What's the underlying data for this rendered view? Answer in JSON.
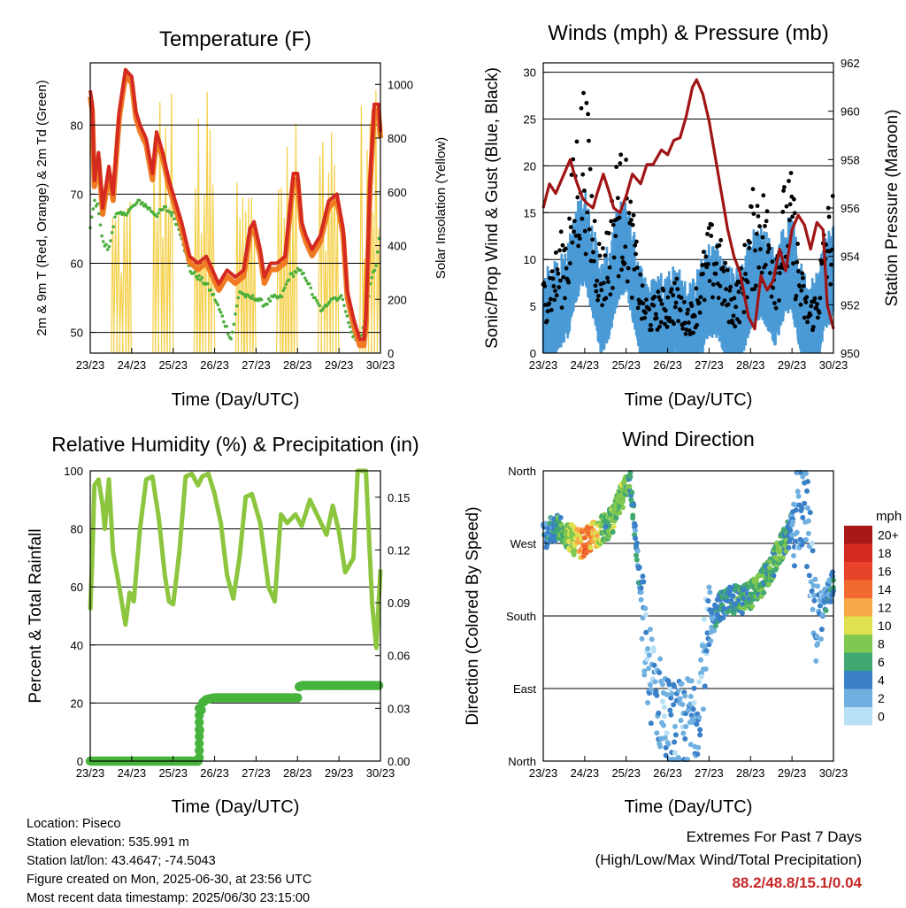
{
  "chart_data": [
    {
      "type": "line",
      "title": "Temperature (F)",
      "xlabel": "Time (Day/UTC)",
      "ylabel": "2m & 9m T (Red, Orange) & 2m Td (Green)",
      "y2label": "Solar Insolation (Yellow)",
      "x_ticks": [
        "23/23",
        "24/23",
        "25/23",
        "26/23",
        "27/23",
        "28/23",
        "29/23",
        "30/23"
      ],
      "ylim": [
        47,
        89
      ],
      "y_ticks": [
        50,
        60,
        70,
        80
      ],
      "y2lim": [
        0,
        1080
      ],
      "y2_ticks": [
        0,
        200,
        400,
        600,
        800,
        1000
      ],
      "grid": true,
      "colors": {
        "t2m": "#d42a20",
        "t9m": "#f07a22",
        "td": "#4caf3c",
        "solar": "#f5d04a"
      },
      "series": [
        {
          "key": "t2m",
          "x": [
            0,
            0.05,
            0.1,
            0.2,
            0.3,
            0.45,
            0.55,
            0.7,
            0.85,
            1.0,
            1.1,
            1.2,
            1.35,
            1.5,
            1.6,
            1.75,
            1.9,
            2.05,
            2.2,
            2.4,
            2.6,
            2.8,
            2.95,
            3.1,
            3.3,
            3.5,
            3.7,
            3.85,
            3.95,
            4.1,
            4.2,
            4.35,
            4.5,
            4.7,
            4.9,
            5.0,
            5.1,
            5.2,
            5.35,
            5.55,
            5.75,
            5.95,
            6.1,
            6.2,
            6.35,
            6.5,
            6.6,
            6.65,
            6.75,
            6.85,
            6.95,
            7.0
          ],
          "values": [
            85,
            83,
            72,
            76,
            68,
            74,
            70,
            82,
            88,
            87,
            82,
            80,
            78,
            73,
            79,
            76,
            72,
            69,
            66,
            61,
            60,
            61,
            59,
            57,
            59,
            58,
            59,
            65,
            66,
            62,
            58,
            60,
            60,
            61,
            73,
            73,
            66,
            64,
            62,
            64,
            69,
            70,
            65,
            56,
            52,
            49,
            49,
            52,
            72,
            83,
            83,
            79
          ]
        },
        {
          "key": "td",
          "x": [
            0,
            0.1,
            0.2,
            0.3,
            0.45,
            0.6,
            0.8,
            1.0,
            1.2,
            1.4,
            1.6,
            1.8,
            2.0,
            2.2,
            2.4,
            2.6,
            2.8,
            3.0,
            3.2,
            3.4,
            3.6,
            3.8,
            4.0,
            4.2,
            4.4,
            4.6,
            4.8,
            5.0,
            5.2,
            5.4,
            5.6,
            5.8,
            6.0,
            6.1,
            6.2,
            6.3,
            6.4,
            6.5,
            6.6,
            6.7,
            6.8,
            6.9,
            7.0
          ],
          "values": [
            65,
            69,
            68,
            63,
            62,
            67,
            67,
            68,
            69,
            68,
            67,
            68,
            67,
            64,
            59,
            58,
            57,
            55,
            52,
            49,
            56,
            55,
            55,
            54,
            55,
            55,
            58,
            59,
            58,
            55,
            53,
            55,
            55,
            55,
            52,
            50,
            49,
            49,
            51,
            55,
            58,
            60,
            65
          ]
        },
        {
          "key": "solar",
          "days": [
            0.75,
            1.75,
            2.75,
            3.75,
            4.75,
            5.75,
            6.75
          ],
          "peaks": [
            650,
            1020,
            990,
            720,
            980,
            1050,
            980
          ]
        }
      ]
    },
    {
      "type": "scatter",
      "title": "Winds (mph) & Pressure (mb)",
      "xlabel": "Time (Day/UTC)",
      "ylabel": "Sonic/Prop Wind & Gust (Blue, Black)",
      "y2label": "Station Pressure (Maroon)",
      "x_ticks": [
        "23/23",
        "24/23",
        "25/23",
        "26/23",
        "27/23",
        "28/23",
        "29/23",
        "30/23"
      ],
      "ylim": [
        0,
        31
      ],
      "y_ticks": [
        0,
        5,
        10,
        15,
        20,
        25,
        30
      ],
      "y2lim": [
        950,
        962
      ],
      "y2_ticks": [
        950,
        952,
        954,
        956,
        958,
        960,
        962
      ],
      "grid": true,
      "colors": {
        "wind": "#4a9ad6",
        "gust": "#000000",
        "pressure": "#a01414"
      },
      "series": [
        {
          "key": "wind_level",
          "x": [
            0,
            0.3,
            0.6,
            0.8,
            1.0,
            1.2,
            1.4,
            1.6,
            1.8,
            2.0,
            2.2,
            2.4,
            2.6,
            2.8,
            3.0,
            3.2,
            3.4,
            3.6,
            3.8,
            4.0,
            4.2,
            4.4,
            4.6,
            4.8,
            5.0,
            5.2,
            5.4,
            5.6,
            5.8,
            6.0,
            6.2,
            6.4,
            6.6,
            6.8,
            7.0
          ],
          "values": [
            3,
            4,
            6,
            10,
            12,
            8,
            4,
            6,
            10,
            11,
            7,
            3,
            2,
            3,
            3,
            4,
            2,
            2,
            4,
            6,
            6,
            4,
            3,
            4,
            7,
            8,
            7,
            5,
            8,
            9,
            4,
            2,
            3,
            7,
            8
          ]
        },
        {
          "key": "gust_level",
          "x": [
            0,
            0.3,
            0.6,
            0.8,
            1.0,
            1.2,
            1.4,
            1.6,
            1.8,
            2.0,
            2.2,
            2.4,
            2.6,
            2.8,
            3.0,
            3.2,
            3.4,
            3.6,
            3.8,
            4.0,
            4.2,
            4.4,
            4.6,
            4.8,
            5.0,
            5.2,
            5.4,
            5.6,
            5.8,
            6.0,
            6.2,
            6.4,
            6.6,
            6.8,
            7.0
          ],
          "values": [
            6,
            8,
            11,
            18,
            22,
            13,
            8,
            11,
            16,
            15,
            10,
            5,
            4,
            5,
            5,
            6,
            4,
            4,
            7,
            10,
            10,
            7,
            5,
            7,
            12,
            14,
            12,
            9,
            13,
            14,
            7,
            4,
            5,
            11,
            13
          ]
        },
        {
          "key": "pressure",
          "x": [
            0,
            0.15,
            0.3,
            0.5,
            0.65,
            0.8,
            0.95,
            1.05,
            1.2,
            1.3,
            1.45,
            1.6,
            1.7,
            1.85,
            2.0,
            2.15,
            2.35,
            2.5,
            2.65,
            2.85,
            3.0,
            3.15,
            3.3,
            3.45,
            3.6,
            3.7,
            3.85,
            4.0,
            4.15,
            4.3,
            4.45,
            4.6,
            4.75,
            4.95,
            5.1,
            5.25,
            5.4,
            5.55,
            5.7,
            5.85,
            6.0,
            6.15,
            6.3,
            6.45,
            6.6,
            6.75,
            6.85,
            7.0
          ],
          "values": [
            956,
            957,
            956.6,
            957.4,
            958,
            957.1,
            956.4,
            956.2,
            956,
            956.6,
            957.4,
            956.6,
            956,
            955.8,
            956.5,
            957.4,
            957,
            957.8,
            957.8,
            958.4,
            958.2,
            958.8,
            958.9,
            959.8,
            961,
            961.3,
            960.7,
            959.6,
            958.1,
            956.6,
            955.1,
            954,
            953.3,
            951.5,
            951,
            953.2,
            952.6,
            953,
            954.3,
            953.4,
            955.1,
            955.7,
            955.3,
            954.3,
            955.4,
            955.1,
            952,
            951
          ]
        }
      ]
    },
    {
      "type": "line",
      "title": "Relative Humidity (%) & Precipitation (in)",
      "xlabel": "Time (Day/UTC)",
      "ylabel": "Percent & Total Rainfall",
      "x_ticks": [
        "23/23",
        "24/23",
        "25/23",
        "26/23",
        "27/23",
        "28/23",
        "29/23",
        "30/23"
      ],
      "ylim": [
        0,
        100
      ],
      "y_ticks": [
        0,
        20,
        40,
        60,
        80,
        100
      ],
      "y2lim": [
        0,
        0.165
      ],
      "y2_ticks": [
        "0.00",
        "0.03",
        "0.06",
        "0.09",
        "0.12",
        "0.15"
      ],
      "grid": true,
      "colors": {
        "rh": "#8cc63f",
        "precip": "#46b33c"
      },
      "series": [
        {
          "key": "rh",
          "x": [
            0,
            0.05,
            0.1,
            0.2,
            0.3,
            0.35,
            0.45,
            0.55,
            0.7,
            0.85,
            0.95,
            1.05,
            1.2,
            1.35,
            1.5,
            1.65,
            1.8,
            1.9,
            2.0,
            2.15,
            2.3,
            2.45,
            2.6,
            2.7,
            2.85,
            3.0,
            3.15,
            3.3,
            3.45,
            3.6,
            3.75,
            3.9,
            4.1,
            4.3,
            4.45,
            4.6,
            4.75,
            4.95,
            5.1,
            5.3,
            5.5,
            5.7,
            5.85,
            6.0,
            6.15,
            6.35,
            6.45,
            6.55,
            6.65,
            6.8,
            6.9,
            7.0
          ],
          "values": [
            52,
            70,
            95,
            97,
            88,
            80,
            97,
            72,
            60,
            47,
            58,
            55,
            80,
            97,
            98,
            84,
            64,
            55,
            54,
            72,
            98,
            99,
            95,
            98,
            99,
            92,
            82,
            64,
            56,
            70,
            91,
            92,
            82,
            60,
            55,
            85,
            82,
            85,
            81,
            90,
            84,
            78,
            88,
            79,
            65,
            70,
            100,
            100,
            100,
            54,
            39,
            66
          ]
        },
        {
          "key": "precip",
          "x": [
            0,
            2.4,
            2.6,
            2.62,
            2.66,
            2.7,
            2.8,
            3.0,
            5.0,
            5.02,
            5.1,
            7.0
          ],
          "values": [
            0,
            0,
            0,
            0.01,
            0.025,
            0.033,
            0.035,
            0.036,
            0.036,
            0.042,
            0.043,
            0.043
          ]
        }
      ]
    },
    {
      "type": "scatter",
      "title": "Wind Direction",
      "xlabel": "Time (Day/UTC)",
      "ylabel": "Direction (Colored By Speed)",
      "x_ticks": [
        "23/23",
        "24/23",
        "25/23",
        "26/23",
        "27/23",
        "28/23",
        "29/23",
        "30/23"
      ],
      "y_ticks": [
        "North",
        "East",
        "South",
        "West",
        "North"
      ],
      "ylim": [
        0,
        360
      ],
      "grid": true,
      "legend": {
        "unit": "mph",
        "labels": [
          "20+",
          "18",
          "16",
          "14",
          "12",
          "10",
          "8",
          "6",
          "4",
          "2",
          "0"
        ],
        "colors": [
          "#a81818",
          "#d42a20",
          "#e8442a",
          "#f06a30",
          "#f8a848",
          "#e0e050",
          "#80c850",
          "#40a870",
          "#3a80c8",
          "#70b0e0",
          "#b8e0f6"
        ]
      },
      "series": [
        {
          "key": "direction",
          "x": [
            0,
            0.4,
            0.8,
            1.0,
            1.2,
            1.5,
            1.7,
            1.9,
            2.1,
            2.5,
            2.9,
            3.1,
            3.4,
            3.7,
            3.9,
            4.2,
            4.5,
            4.8,
            5.1,
            5.4,
            5.7,
            5.9,
            6.1,
            6.3,
            6.6,
            6.9,
            7.0
          ],
          "values": [
            280,
            290,
            270,
            270,
            280,
            290,
            300,
            330,
            350,
            120,
            60,
            40,
            40,
            60,
            140,
            190,
            200,
            200,
            210,
            230,
            260,
            280,
            300,
            330,
            170,
            210,
            220
          ],
          "speeds": [
            3,
            6,
            10,
            14,
            12,
            6,
            8,
            7,
            5,
            2,
            2,
            3,
            2,
            3,
            2,
            4,
            5,
            6,
            7,
            6,
            7,
            5,
            2,
            3,
            2,
            4,
            5
          ]
        }
      ]
    }
  ],
  "info": {
    "location": "Location: Piseco",
    "elevation": "Station elevation: 535.991 m",
    "latlon": "Station lat/lon: 43.4647; -74.5043",
    "created": "Figure created on Mon, 2025-06-30, at 23:56 UTC",
    "timestamp": "Most recent data timestamp: 2025/06/30 23:15:00"
  },
  "extremes": {
    "title": "Extremes For Past 7 Days",
    "subtitle": "(High/Low/Max Wind/Total Precipitation)",
    "values": "88.2/48.8/15.1/0.04"
  }
}
